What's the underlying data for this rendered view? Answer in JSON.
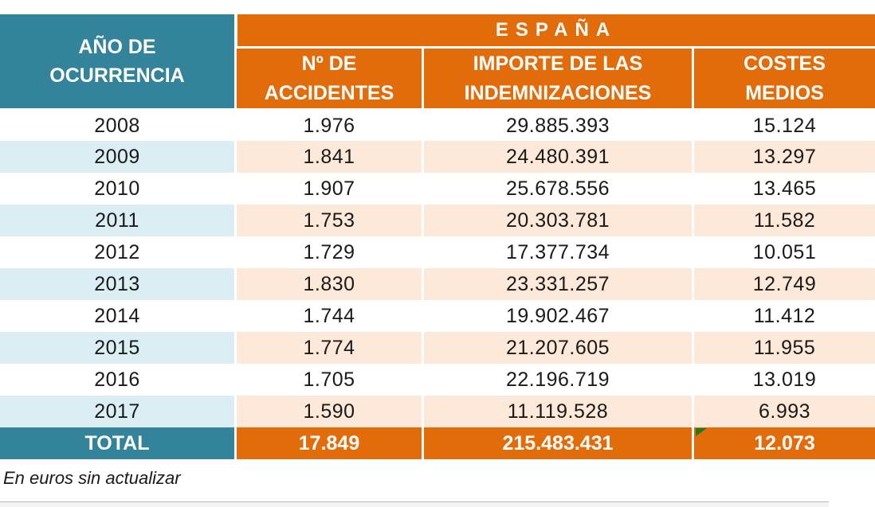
{
  "header": {
    "year_line1": "AÑO DE",
    "year_line2": "OCURRENCIA",
    "region": "ESPAÑA",
    "col1_line1": "Nº DE",
    "col1_line2": "ACCIDENTES",
    "col2_line1": "IMPORTE DE LAS",
    "col2_line2": "INDEMNIZACIONES",
    "col3_line1": "COSTES",
    "col3_line2": "MEDIOS"
  },
  "rows": [
    {
      "year": "2008",
      "accidents": "1.976",
      "amount": "29.885.393",
      "avg": "15.124"
    },
    {
      "year": "2009",
      "accidents": "1.841",
      "amount": "24.480.391",
      "avg": "13.297"
    },
    {
      "year": "2010",
      "accidents": "1.907",
      "amount": "25.678.556",
      "avg": "13.465"
    },
    {
      "year": "2011",
      "accidents": "1.753",
      "amount": "20.303.781",
      "avg": "11.582"
    },
    {
      "year": "2012",
      "accidents": "1.729",
      "amount": "17.377.734",
      "avg": "10.051"
    },
    {
      "year": "2013",
      "accidents": "1.830",
      "amount": "23.331.257",
      "avg": "12.749"
    },
    {
      "year": "2014",
      "accidents": "1.744",
      "amount": "19.902.467",
      "avg": "11.412"
    },
    {
      "year": "2015",
      "accidents": "1.774",
      "amount": "21.207.605",
      "avg": "11.955"
    },
    {
      "year": "2016",
      "accidents": "1.705",
      "amount": "22.196.719",
      "avg": "13.019"
    },
    {
      "year": "2017",
      "accidents": "1.590",
      "amount": "11.119.528",
      "avg": "6.993"
    }
  ],
  "total": {
    "label": "TOTAL",
    "accidents": "17.849",
    "amount": "215.483.431",
    "avg": "12.073"
  },
  "note": "En euros sin actualizar",
  "colors": {
    "teal": "#33849a",
    "orange": "#e36c0a",
    "light_teal": "#daeef3",
    "light_orange": "#fde9d9"
  }
}
